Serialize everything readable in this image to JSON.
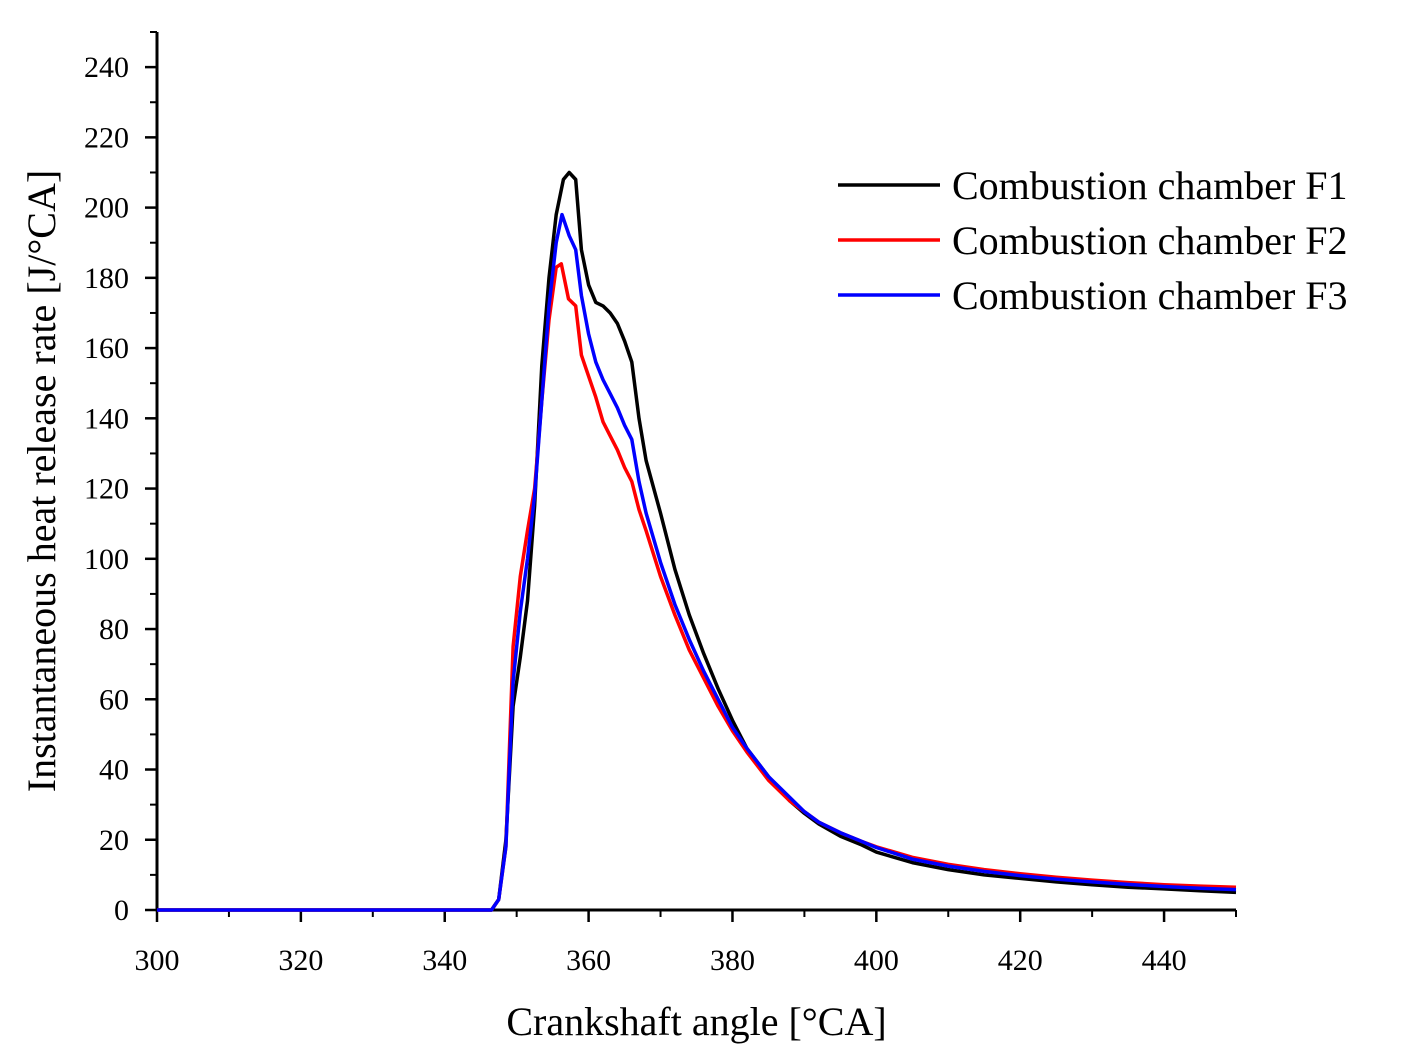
{
  "chart_data": {
    "type": "line",
    "title": "",
    "xlabel": "Crankshaft angle [°CA]",
    "ylabel": "Instantaneous heat release rate [J/°CA]",
    "xlim": [
      300,
      450
    ],
    "ylim": [
      0,
      250
    ],
    "xticks": [
      300,
      320,
      340,
      360,
      380,
      400,
      420,
      440
    ],
    "yticks": [
      0,
      20,
      40,
      60,
      80,
      100,
      120,
      140,
      160,
      180,
      200,
      220,
      240
    ],
    "legend_position": "top-right",
    "series": [
      {
        "name": "Combustion chamber F1",
        "color": "#000000",
        "points": [
          [
            300,
            0
          ],
          [
            346.5,
            0
          ],
          [
            347.5,
            3
          ],
          [
            348.5,
            20
          ],
          [
            349.5,
            58
          ],
          [
            350.5,
            72
          ],
          [
            351.5,
            88
          ],
          [
            352.5,
            115
          ],
          [
            353.5,
            155
          ],
          [
            354.5,
            180
          ],
          [
            355.5,
            198
          ],
          [
            356.5,
            208
          ],
          [
            357.3,
            210
          ],
          [
            358.2,
            208
          ],
          [
            359,
            188
          ],
          [
            360,
            178
          ],
          [
            361,
            173
          ],
          [
            362,
            172
          ],
          [
            363,
            170
          ],
          [
            364,
            167
          ],
          [
            365,
            162
          ],
          [
            366,
            156
          ],
          [
            367,
            140
          ],
          [
            368,
            128
          ],
          [
            370,
            113
          ],
          [
            372,
            97
          ],
          [
            374,
            84
          ],
          [
            376,
            73
          ],
          [
            378,
            63
          ],
          [
            380,
            54
          ],
          [
            382,
            46
          ],
          [
            385,
            38
          ],
          [
            388,
            31
          ],
          [
            390,
            27.5
          ],
          [
            392,
            24.5
          ],
          [
            395,
            21
          ],
          [
            398,
            18.5
          ],
          [
            400,
            16.5
          ],
          [
            405,
            13.5
          ],
          [
            410,
            11.5
          ],
          [
            415,
            10
          ],
          [
            420,
            9
          ],
          [
            425,
            8
          ],
          [
            430,
            7.2
          ],
          [
            435,
            6.5
          ],
          [
            440,
            6
          ],
          [
            445,
            5.5
          ],
          [
            450,
            5
          ]
        ]
      },
      {
        "name": "Combustion chamber F2",
        "color": "#ff0000",
        "points": [
          [
            300,
            0
          ],
          [
            346.5,
            0
          ],
          [
            347.5,
            3
          ],
          [
            348.5,
            18
          ],
          [
            349.5,
            75
          ],
          [
            350.5,
            95
          ],
          [
            351.5,
            108
          ],
          [
            352.5,
            120
          ],
          [
            353.5,
            145
          ],
          [
            354.5,
            168
          ],
          [
            355.5,
            183
          ],
          [
            356.2,
            184
          ],
          [
            357.2,
            174
          ],
          [
            358.2,
            172
          ],
          [
            359,
            158
          ],
          [
            360,
            152
          ],
          [
            361,
            146
          ],
          [
            362,
            139
          ],
          [
            363,
            135
          ],
          [
            364,
            131
          ],
          [
            365,
            126
          ],
          [
            366,
            122
          ],
          [
            367,
            114
          ],
          [
            368,
            108
          ],
          [
            370,
            95
          ],
          [
            372,
            84
          ],
          [
            374,
            74
          ],
          [
            376,
            66
          ],
          [
            378,
            58
          ],
          [
            380,
            51
          ],
          [
            382,
            45
          ],
          [
            385,
            37
          ],
          [
            388,
            31
          ],
          [
            390,
            28
          ],
          [
            392,
            25
          ],
          [
            395,
            22
          ],
          [
            398,
            19.5
          ],
          [
            400,
            18
          ],
          [
            405,
            15
          ],
          [
            410,
            13
          ],
          [
            415,
            11.5
          ],
          [
            420,
            10.3
          ],
          [
            425,
            9.3
          ],
          [
            430,
            8.5
          ],
          [
            435,
            7.8
          ],
          [
            440,
            7.2
          ],
          [
            445,
            6.8
          ],
          [
            450,
            6.5
          ]
        ]
      },
      {
        "name": "Combustion chamber F3",
        "color": "#0000ff",
        "points": [
          [
            300,
            0
          ],
          [
            346.5,
            0
          ],
          [
            347.5,
            3
          ],
          [
            348.5,
            18
          ],
          [
            349.5,
            65
          ],
          [
            350.5,
            85
          ],
          [
            351.5,
            100
          ],
          [
            352.5,
            118
          ],
          [
            353.5,
            145
          ],
          [
            354.5,
            172
          ],
          [
            355.5,
            190
          ],
          [
            356.3,
            198
          ],
          [
            357.3,
            192
          ],
          [
            358.2,
            188
          ],
          [
            359,
            175
          ],
          [
            360,
            164
          ],
          [
            361,
            156
          ],
          [
            362,
            151
          ],
          [
            363,
            147
          ],
          [
            364,
            143
          ],
          [
            365,
            138
          ],
          [
            366,
            134
          ],
          [
            367,
            122
          ],
          [
            368,
            113
          ],
          [
            370,
            99
          ],
          [
            372,
            87
          ],
          [
            374,
            77
          ],
          [
            376,
            68
          ],
          [
            378,
            60
          ],
          [
            380,
            52
          ],
          [
            382,
            46
          ],
          [
            385,
            38
          ],
          [
            388,
            32
          ],
          [
            390,
            28
          ],
          [
            392,
            25
          ],
          [
            395,
            22
          ],
          [
            398,
            19.5
          ],
          [
            400,
            17.8
          ],
          [
            405,
            14.5
          ],
          [
            410,
            12.5
          ],
          [
            415,
            11
          ],
          [
            420,
            9.8
          ],
          [
            425,
            8.8
          ],
          [
            430,
            8
          ],
          [
            435,
            7.3
          ],
          [
            440,
            6.7
          ],
          [
            445,
            6.2
          ],
          [
            450,
            5.8
          ]
        ]
      }
    ]
  }
}
